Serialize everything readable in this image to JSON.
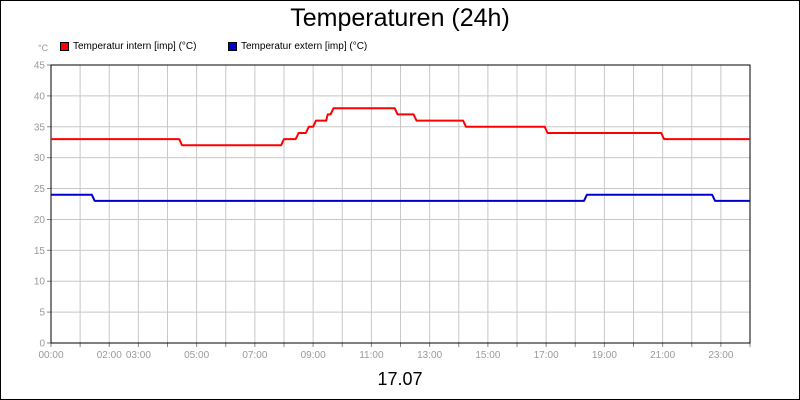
{
  "chart_data": {
    "type": "line",
    "title": "Temperaturen (24h)",
    "xlabel": "17.07",
    "ylabel": "°C",
    "ylim": [
      0,
      45
    ],
    "yticks": [
      0,
      5,
      10,
      15,
      20,
      25,
      30,
      35,
      40,
      45
    ],
    "xlim": [
      0,
      24
    ],
    "xticks": [
      {
        "t": 0,
        "label": "00:00"
      },
      {
        "t": 2,
        "label": "02:00"
      },
      {
        "t": 3,
        "label": "03:00"
      },
      {
        "t": 5,
        "label": "05:00"
      },
      {
        "t": 7,
        "label": "07:00"
      },
      {
        "t": 9,
        "label": "09:00"
      },
      {
        "t": 11,
        "label": "11:00"
      },
      {
        "t": 13,
        "label": "13:00"
      },
      {
        "t": 15,
        "label": "15:00"
      },
      {
        "t": 17,
        "label": "17:00"
      },
      {
        "t": 19,
        "label": "19:00"
      },
      {
        "t": 21,
        "label": "21:00"
      },
      {
        "t": 23,
        "label": "23:00"
      }
    ],
    "grid": true,
    "legend_position": "top-left",
    "series": [
      {
        "name": "Temperatur intern [imp] (°C)",
        "color": "#ff0000",
        "points": [
          [
            0.0,
            33
          ],
          [
            4.4,
            33
          ],
          [
            4.5,
            32
          ],
          [
            7.9,
            32
          ],
          [
            8.0,
            33
          ],
          [
            8.4,
            33
          ],
          [
            8.5,
            34
          ],
          [
            8.75,
            34
          ],
          [
            8.85,
            35
          ],
          [
            9.0,
            35
          ],
          [
            9.1,
            36
          ],
          [
            9.45,
            36
          ],
          [
            9.5,
            37
          ],
          [
            9.6,
            37
          ],
          [
            9.7,
            38
          ],
          [
            11.8,
            38
          ],
          [
            11.9,
            37
          ],
          [
            12.45,
            37
          ],
          [
            12.55,
            36
          ],
          [
            14.15,
            36
          ],
          [
            14.25,
            35
          ],
          [
            16.95,
            35
          ],
          [
            17.05,
            34
          ],
          [
            20.95,
            34
          ],
          [
            21.05,
            33
          ],
          [
            24.0,
            33
          ]
        ]
      },
      {
        "name": "Temperatur extern [imp] (°C)",
        "color": "#0000cc",
        "points": [
          [
            0.0,
            24
          ],
          [
            1.4,
            24
          ],
          [
            1.5,
            23
          ],
          [
            18.3,
            23
          ],
          [
            18.4,
            24
          ],
          [
            22.7,
            24
          ],
          [
            22.8,
            23
          ],
          [
            24.0,
            23
          ]
        ]
      }
    ]
  }
}
